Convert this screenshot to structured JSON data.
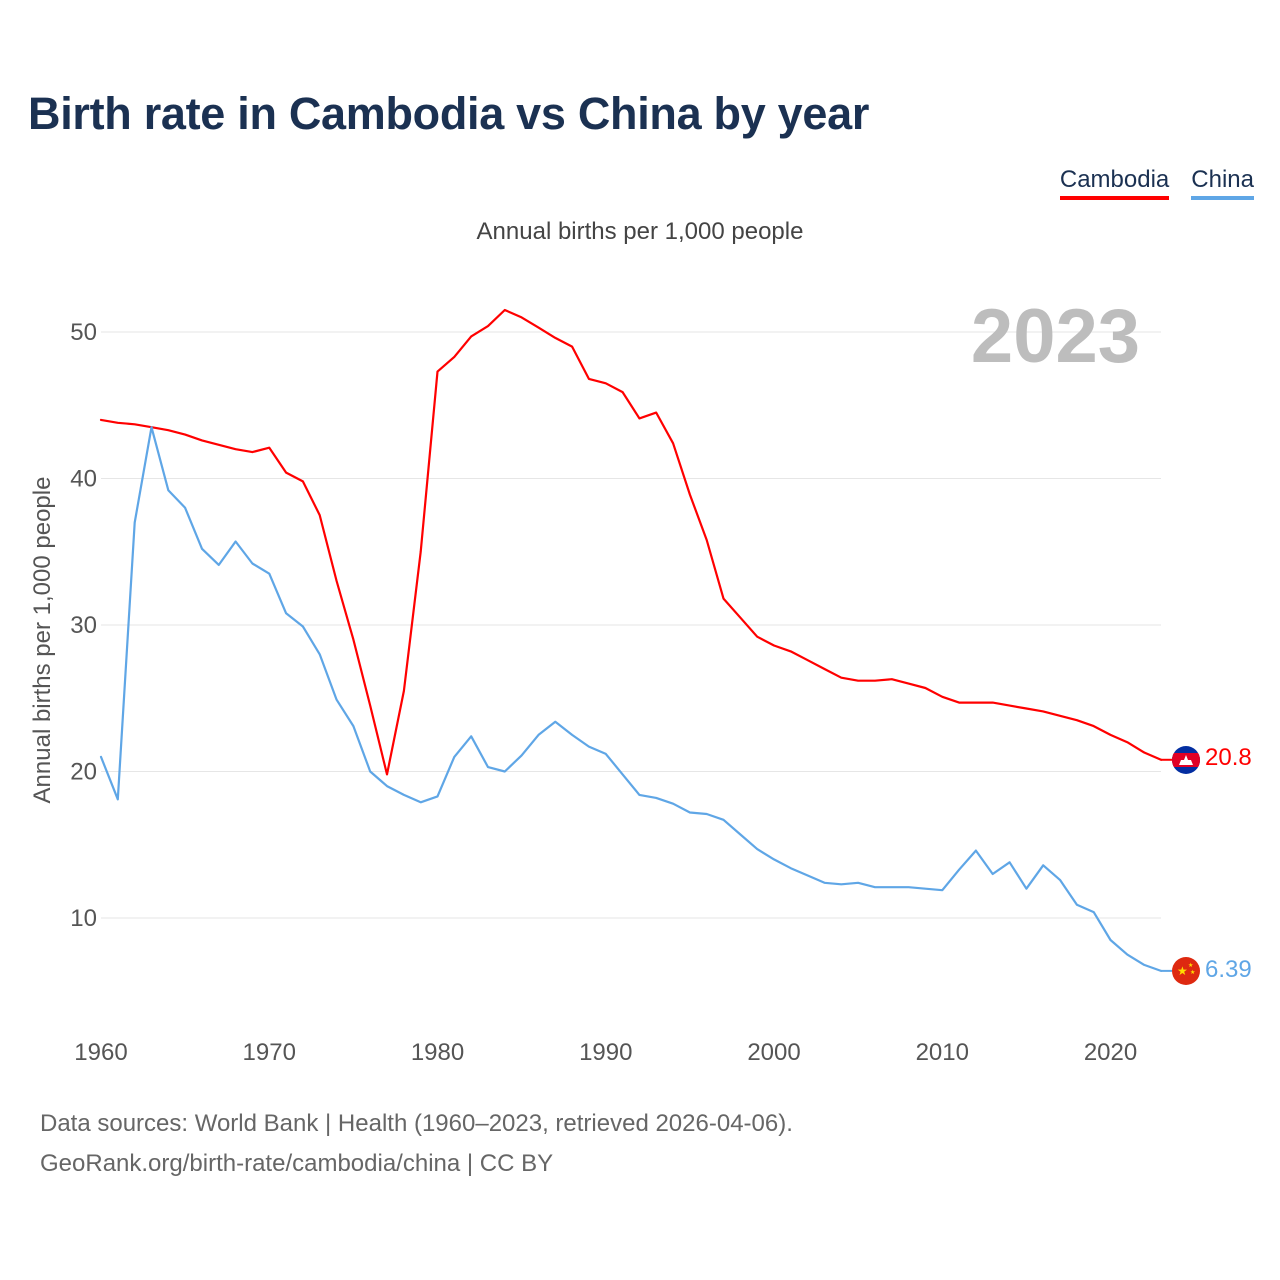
{
  "title": "Birth rate in Cambodia vs China by year",
  "subtitle": "Annual births per 1,000 people",
  "legend": [
    {
      "name": "Cambodia",
      "color": "#ff0000"
    },
    {
      "name": "China",
      "color": "#5fa6e6"
    }
  ],
  "year_display": "2023",
  "footer": {
    "line1": "Data sources: World Bank | Health (1960–2023, retrieved 2026-04-06).",
    "line2": "GeoRank.org/birth-rate/cambodia/china | CC BY"
  },
  "chart_data": {
    "type": "line",
    "title": "Birth rate in Cambodia vs China by year",
    "xlabel": "",
    "ylabel": "Annual births per 1,000 people",
    "xlim": [
      1960,
      2023
    ],
    "ylim": [
      4,
      55
    ],
    "xticks": [
      1960,
      1970,
      1980,
      1990,
      2000,
      2010,
      2020
    ],
    "yticks": [
      10,
      20,
      30,
      40,
      50
    ],
    "grid": true,
    "x": [
      1960,
      1961,
      1962,
      1963,
      1964,
      1965,
      1966,
      1967,
      1968,
      1969,
      1970,
      1971,
      1972,
      1973,
      1974,
      1975,
      1976,
      1977,
      1978,
      1979,
      1980,
      1981,
      1982,
      1983,
      1984,
      1985,
      1986,
      1987,
      1988,
      1989,
      1990,
      1991,
      1992,
      1993,
      1994,
      1995,
      1996,
      1997,
      1998,
      1999,
      2000,
      2001,
      2002,
      2003,
      2004,
      2005,
      2006,
      2007,
      2008,
      2009,
      2010,
      2011,
      2012,
      2013,
      2014,
      2015,
      2016,
      2017,
      2018,
      2019,
      2020,
      2021,
      2022,
      2023
    ],
    "series": [
      {
        "name": "Cambodia",
        "color": "#ff0000",
        "end_label": "20.8",
        "flag": "cambodia-flag-icon",
        "values": [
          44.0,
          43.8,
          43.7,
          43.5,
          43.3,
          43.0,
          42.6,
          42.3,
          42.0,
          41.8,
          42.1,
          40.4,
          39.8,
          37.5,
          33.0,
          29.0,
          24.5,
          19.8,
          25.5,
          35.0,
          47.3,
          48.3,
          49.7,
          50.4,
          51.5,
          51.0,
          50.3,
          49.6,
          49.0,
          46.8,
          46.5,
          45.9,
          44.1,
          44.5,
          42.4,
          38.9,
          35.8,
          31.8,
          30.5,
          29.2,
          28.6,
          28.2,
          27.6,
          27.0,
          26.4,
          26.2,
          26.2,
          26.3,
          26.0,
          25.7,
          25.1,
          24.7,
          24.7,
          24.7,
          24.5,
          24.3,
          24.1,
          23.8,
          23.5,
          23.1,
          22.5,
          22.0,
          21.3,
          20.8
        ]
      },
      {
        "name": "China",
        "color": "#5fa6e6",
        "end_label": "6.39",
        "flag": "china-flag-icon",
        "values": [
          21.0,
          18.1,
          37.0,
          43.5,
          39.2,
          38.0,
          35.2,
          34.1,
          35.7,
          34.2,
          33.5,
          30.8,
          29.9,
          28.0,
          24.9,
          23.1,
          20.0,
          19.0,
          18.4,
          17.9,
          18.3,
          21.0,
          22.4,
          20.3,
          20.0,
          21.1,
          22.5,
          23.4,
          22.5,
          21.7,
          21.2,
          19.8,
          18.4,
          18.2,
          17.8,
          17.2,
          17.1,
          16.7,
          15.7,
          14.7,
          14.0,
          13.4,
          12.9,
          12.4,
          12.3,
          12.4,
          12.1,
          12.1,
          12.1,
          12.0,
          11.9,
          13.3,
          14.6,
          13.0,
          13.8,
          12.0,
          13.6,
          12.6,
          10.9,
          10.4,
          8.5,
          7.5,
          6.8,
          6.39
        ]
      }
    ]
  }
}
